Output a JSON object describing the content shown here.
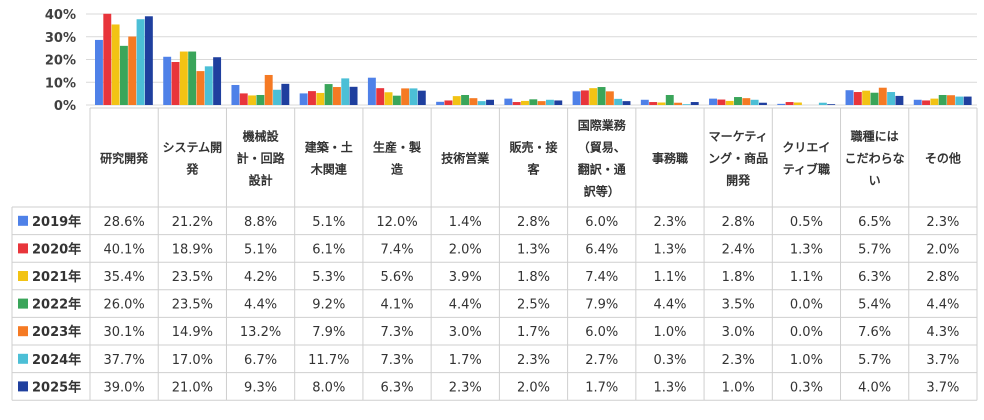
{
  "chart_data": {
    "type": "bar",
    "ylim": [
      0,
      40
    ],
    "yticks": [
      "40%",
      "30%",
      "20%",
      "10%",
      "0%"
    ],
    "categories": [
      "研究開発",
      "システム開発",
      "機械設計・回路設計",
      "建築・土木関連",
      "生産・製造",
      "技術営業",
      "販売・接客",
      "国際業務（貿易、翻訳・通訳等）",
      "事務職",
      "マーケティング・商品開発",
      "クリエイティブ職",
      "職種にはこだわらない",
      "その他"
    ],
    "category_lines": [
      [
        "研究開発"
      ],
      [
        "システム開",
        "発"
      ],
      [
        "機械設",
        "計・回路",
        "設計"
      ],
      [
        "建築・土",
        "木関連"
      ],
      [
        "生産・製",
        "造"
      ],
      [
        "技術営業"
      ],
      [
        "販売・接",
        "客"
      ],
      [
        "国際業務",
        "（貿易、",
        "翻訳・通",
        "訳等）"
      ],
      [
        "事務職"
      ],
      [
        "マーケティ",
        "ング・商品",
        "開発"
      ],
      [
        "クリエイ",
        "ティブ職"
      ],
      [
        "職種には",
        "こだわらな",
        "い"
      ],
      [
        "その他"
      ]
    ],
    "series": [
      {
        "name": "2019年",
        "color": "#4f81e8",
        "values": [
          28.6,
          21.2,
          8.8,
          5.1,
          12.0,
          1.4,
          2.8,
          6.0,
          2.3,
          2.8,
          0.5,
          6.5,
          2.3
        ],
        "labels": [
          "28.6%",
          "21.2%",
          "8.8%",
          "5.1%",
          "12.0%",
          "1.4%",
          "2.8%",
          "6.0%",
          "2.3%",
          "2.8%",
          "0.5%",
          "6.5%",
          "2.3%"
        ]
      },
      {
        "name": "2020年",
        "color": "#e8353b",
        "values": [
          40.1,
          18.9,
          5.1,
          6.1,
          7.4,
          2.0,
          1.3,
          6.4,
          1.3,
          2.4,
          1.3,
          5.7,
          2.0
        ],
        "labels": [
          "40.1%",
          "18.9%",
          "5.1%",
          "6.1%",
          "7.4%",
          "2.0%",
          "1.3%",
          "6.4%",
          "1.3%",
          "2.4%",
          "1.3%",
          "5.7%",
          "2.0%"
        ]
      },
      {
        "name": "2021年",
        "color": "#f2c314",
        "values": [
          35.4,
          23.5,
          4.2,
          5.3,
          5.6,
          3.9,
          1.8,
          7.4,
          1.1,
          1.8,
          1.1,
          6.3,
          2.8
        ],
        "labels": [
          "35.4%",
          "23.5%",
          "4.2%",
          "5.3%",
          "5.6%",
          "3.9%",
          "1.8%",
          "7.4%",
          "1.1%",
          "1.8%",
          "1.1%",
          "6.3%",
          "2.8%"
        ]
      },
      {
        "name": "2022年",
        "color": "#3aa55a",
        "values": [
          26.0,
          23.5,
          4.4,
          9.2,
          4.1,
          4.4,
          2.5,
          7.9,
          4.4,
          3.5,
          0.0,
          5.4,
          4.4
        ],
        "labels": [
          "26.0%",
          "23.5%",
          "4.4%",
          "9.2%",
          "4.1%",
          "4.4%",
          "2.5%",
          "7.9%",
          "4.4%",
          "3.5%",
          "0.0%",
          "5.4%",
          "4.4%"
        ]
      },
      {
        "name": "2023年",
        "color": "#f57a24",
        "values": [
          30.1,
          14.9,
          13.2,
          7.9,
          7.3,
          3.0,
          1.7,
          6.0,
          1.0,
          3.0,
          0.0,
          7.6,
          4.3
        ],
        "labels": [
          "30.1%",
          "14.9%",
          "13.2%",
          "7.9%",
          "7.3%",
          "3.0%",
          "1.7%",
          "6.0%",
          "1.0%",
          "3.0%",
          "0.0%",
          "7.6%",
          "4.3%"
        ]
      },
      {
        "name": "2024年",
        "color": "#4cbfd6",
        "values": [
          37.7,
          17.0,
          6.7,
          11.7,
          7.3,
          1.7,
          2.3,
          2.7,
          0.3,
          2.3,
          1.0,
          5.7,
          3.7
        ],
        "labels": [
          "37.7%",
          "17.0%",
          "6.7%",
          "11.7%",
          "7.3%",
          "1.7%",
          "2.3%",
          "2.7%",
          "0.3%",
          "2.3%",
          "1.0%",
          "5.7%",
          "3.7%"
        ]
      },
      {
        "name": "2025年",
        "color": "#1f3f9e",
        "values": [
          39.0,
          21.0,
          9.3,
          8.0,
          6.3,
          2.3,
          2.0,
          1.7,
          1.3,
          1.0,
          0.3,
          4.0,
          3.7
        ],
        "labels": [
          "39.0%",
          "21.0%",
          "9.3%",
          "8.0%",
          "6.3%",
          "2.3%",
          "2.0%",
          "1.7%",
          "1.3%",
          "1.0%",
          "0.3%",
          "4.0%",
          "3.7%"
        ]
      }
    ]
  }
}
